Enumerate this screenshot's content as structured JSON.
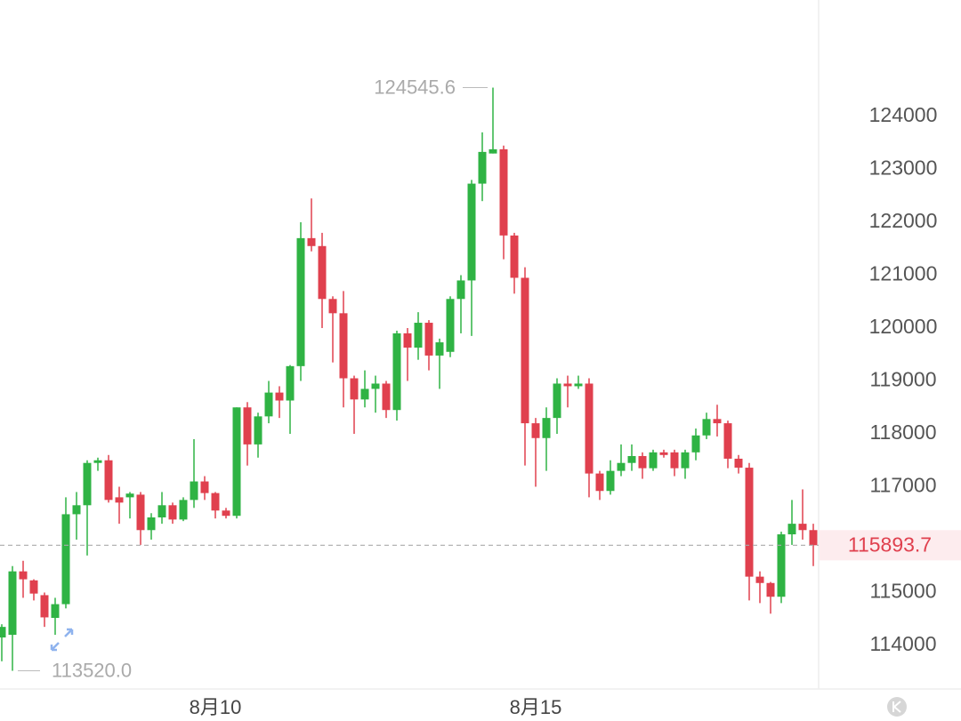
{
  "chart_data": {
    "type": "candlestick",
    "categories": [
      null,
      null,
      null,
      null,
      null,
      null,
      null,
      null,
      null,
      null,
      null,
      null,
      null,
      null,
      null,
      null,
      null,
      null,
      null,
      null,
      "8月10",
      null,
      null,
      null,
      null,
      null,
      null,
      null,
      null,
      null,
      null,
      null,
      null,
      null,
      null,
      null,
      null,
      null,
      null,
      null,
      null,
      null,
      null,
      null,
      null,
      null,
      null,
      null,
      null,
      null,
      "8月15",
      null,
      null,
      null,
      null,
      null,
      null,
      null,
      null,
      null,
      null,
      null,
      null,
      null,
      null,
      null,
      null,
      null,
      null,
      null,
      null,
      null,
      null,
      null,
      null,
      null,
      null
    ],
    "open": [
      114150,
      114200,
      115400,
      115230,
      114950,
      114520,
      114780,
      116480,
      116650,
      117450,
      117500,
      116800,
      116800,
      116850,
      116180,
      116420,
      116650,
      116380,
      116750,
      117100,
      116880,
      116550,
      116450,
      118500,
      117800,
      118330,
      118780,
      118630,
      119280,
      121700,
      121550,
      120550,
      120280,
      119050,
      118650,
      118850,
      118950,
      118450,
      119900,
      119630,
      120100,
      119480,
      119550,
      120550,
      120900,
      122730,
      123300,
      123380,
      121750,
      120950,
      118200,
      117920,
      118300,
      118950,
      118900,
      118950,
      117250,
      116920,
      117300,
      117450,
      117580,
      117350,
      117650,
      117650,
      117350,
      117650,
      117970,
      118280,
      118200,
      117530,
      117360,
      115300,
      115180,
      114920,
      116100,
      116300,
      116180
    ],
    "high": [
      114400,
      115500,
      115600,
      115250,
      115000,
      114900,
      116800,
      116900,
      117500,
      117550,
      117600,
      117000,
      116900,
      116900,
      116500,
      116900,
      116700,
      116800,
      117900,
      117200,
      116900,
      116600,
      118500,
      118600,
      118400,
      119000,
      118900,
      119300,
      122000,
      122450,
      121800,
      120600,
      120700,
      119100,
      119200,
      119100,
      119000,
      119950,
      120000,
      120300,
      120150,
      119800,
      120600,
      121000,
      122800,
      123700,
      124545.6,
      123450,
      121800,
      121150,
      118300,
      118500,
      119050,
      119100,
      119100,
      119050,
      117300,
      117500,
      117800,
      117800,
      117650,
      117700,
      117700,
      117700,
      117700,
      118100,
      118400,
      118550,
      118250,
      117600,
      117450,
      115400,
      115200,
      116150,
      116750,
      116950,
      116300
    ],
    "low": [
      113700,
      113520,
      114900,
      114850,
      114350,
      114200,
      114700,
      116000,
      115700,
      117300,
      116700,
      116300,
      116400,
      115900,
      116000,
      116300,
      116300,
      116350,
      116600,
      116750,
      116400,
      116400,
      116400,
      117400,
      117550,
      118200,
      118300,
      118000,
      119000,
      121450,
      120000,
      119350,
      118500,
      118000,
      118500,
      118400,
      118300,
      118250,
      119000,
      119400,
      119200,
      118850,
      119450,
      119900,
      119850,
      122400,
      123300,
      121300,
      120650,
      117400,
      117000,
      117300,
      118000,
      118500,
      118850,
      116800,
      116750,
      116850,
      117200,
      117300,
      117150,
      117300,
      117550,
      117200,
      117150,
      117500,
      117900,
      117950,
      117350,
      117250,
      114850,
      114800,
      114600,
      114800,
      115900,
      116000,
      115500
    ],
    "close": [
      114350,
      115400,
      115250,
      114980,
      114530,
      114780,
      116480,
      116650,
      117450,
      117500,
      116750,
      116700,
      116870,
      116180,
      116420,
      116650,
      116380,
      116750,
      117100,
      116880,
      116550,
      116450,
      118500,
      117800,
      118330,
      118780,
      118630,
      119280,
      121700,
      121550,
      120550,
      120280,
      119050,
      118650,
      118850,
      118950,
      118450,
      119900,
      119630,
      120100,
      119480,
      119730,
      120550,
      120900,
      122730,
      123330,
      123380,
      121750,
      120950,
      118200,
      117920,
      118300,
      118950,
      118900,
      118950,
      117250,
      116920,
      117300,
      117450,
      117580,
      117350,
      117650,
      117600,
      117350,
      117650,
      117970,
      118280,
      118200,
      117530,
      117360,
      115300,
      115180,
      114920,
      116100,
      116300,
      116180,
      115893.7
    ],
    "low_label": "113520.0",
    "up_color": "#2fb344",
    "down_color": "#e0404e",
    "ylim": [
      113176,
      126202
    ],
    "yticks": [
      114000,
      115000,
      117000,
      118000,
      119000,
      120000,
      121000,
      122000,
      123000,
      124000
    ],
    "grid": false
  }
}
